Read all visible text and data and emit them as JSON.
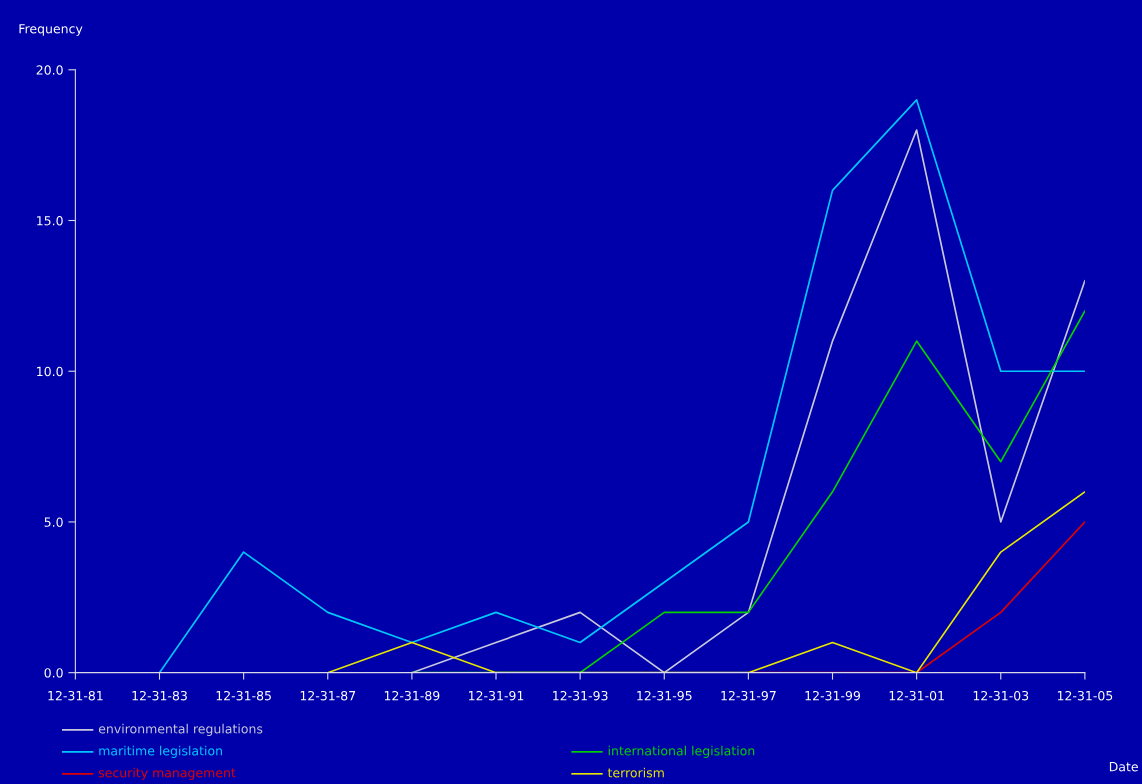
{
  "chart_data": {
    "type": "line",
    "xlabel": "Date",
    "ylabel": "Frequency",
    "categories": [
      "12-31-81",
      "12-31-83",
      "12-31-85",
      "12-31-87",
      "12-31-89",
      "12-31-91",
      "12-31-93",
      "12-31-95",
      "12-31-97",
      "12-31-99",
      "12-31-01",
      "12-31-03",
      "12-31-05"
    ],
    "series": [
      {
        "name": "environmental regulations",
        "color": "#c8c8dc",
        "values": [
          null,
          null,
          null,
          null,
          0,
          1,
          2,
          0,
          2,
          11,
          18,
          5,
          13
        ]
      },
      {
        "name": "maritime legislation",
        "color": "#00c8ff",
        "values": [
          null,
          0,
          4,
          2,
          1,
          2,
          1,
          3,
          5,
          16,
          19,
          10,
          10
        ]
      },
      {
        "name": "international legislation",
        "color": "#00d200",
        "values": [
          null,
          null,
          null,
          null,
          0,
          0,
          0,
          2,
          2,
          6,
          11,
          7,
          12
        ]
      },
      {
        "name": "security management",
        "color": "#e00000",
        "values": [
          null,
          null,
          null,
          null,
          null,
          null,
          null,
          null,
          0,
          0,
          0,
          2,
          5
        ]
      },
      {
        "name": "terrorism",
        "color": "#e6e600",
        "values": [
          null,
          null,
          null,
          0,
          1,
          0,
          0,
          0,
          0,
          1,
          0,
          4,
          6
        ]
      }
    ],
    "ylim": [
      0,
      20
    ],
    "yticks": [
      {
        "value": 0,
        "label": "0.0"
      },
      {
        "value": 5,
        "label": "5.0"
      },
      {
        "value": 10,
        "label": "10.0"
      },
      {
        "value": 15,
        "label": "15.0"
      },
      {
        "value": 20,
        "label": "20.0"
      }
    ],
    "grid": false,
    "legend": "bottom",
    "marker": "none",
    "line_style": "solid"
  }
}
